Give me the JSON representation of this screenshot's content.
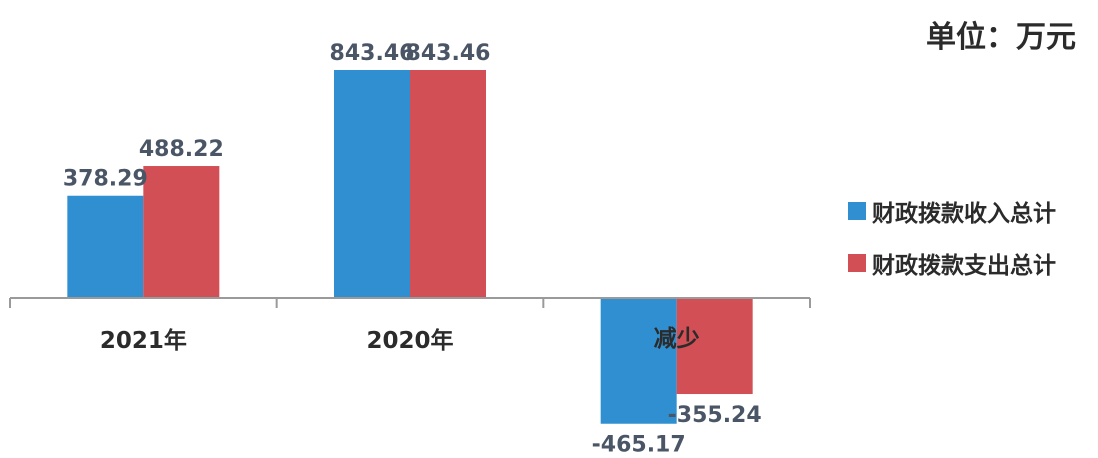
{
  "chart_data": {
    "type": "bar",
    "categories": [
      "2021年",
      "2020年",
      "减少"
    ],
    "series": [
      {
        "name": "财政拨款收入总计",
        "values": [
          378.29,
          843.46,
          -465.17
        ]
      },
      {
        "name": "财政拨款支出总计",
        "values": [
          488.22,
          843.46,
          -355.24
        ]
      }
    ],
    "data_labels": [
      [
        "378.29",
        "843.46",
        "-465.17"
      ],
      [
        "488.22",
        "843.46",
        "-355.24"
      ]
    ],
    "colors": [
      "#2f8fd0",
      "#d24f55"
    ],
    "ylim": [
      -500,
      900
    ],
    "grid": false,
    "legend": "right",
    "unit_label": "单位：万元"
  }
}
